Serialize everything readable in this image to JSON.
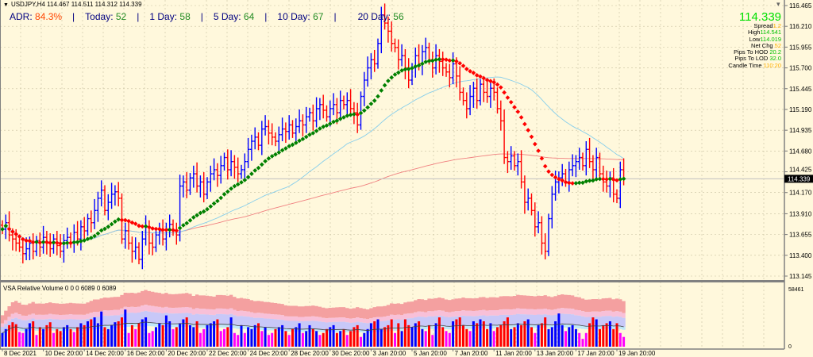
{
  "header": {
    "symbol": "USDJPY,H4",
    "ohlc_text": "114.467 114.511 114.312 114.339"
  },
  "adr": {
    "adr_label": "ADR:",
    "adr_value": "84.3%",
    "today_label": "Today:",
    "today_value": "52",
    "d1_label": "1 Day:",
    "d1_value": "58",
    "d5_label": "5 Day:",
    "d5_value": "64",
    "d10_label": "10 Day:",
    "d10_value": "67",
    "d20_label": "20 Day:",
    "d20_value": "56",
    "separator": "|"
  },
  "info": {
    "price": "114.339",
    "rows": [
      {
        "label": "Spread",
        "value": "1.2",
        "color": "orange"
      },
      {
        "label": "High",
        "value": "114.541",
        "color": "green"
      },
      {
        "label": "Low",
        "value": "114.019",
        "color": "green"
      },
      {
        "label": "Net Chg",
        "value": "52",
        "color": "orange"
      },
      {
        "label": "Pips To HOD",
        "value": "20.2",
        "color": "green"
      },
      {
        "label": "Pips To LOD",
        "value": "32.0",
        "color": "green"
      },
      {
        "label": "Candle Time",
        "value": "110:20",
        "color": "orange"
      }
    ]
  },
  "volume_pane": {
    "title": "VSA Relative Volume 0 0 0 6089 0 6089",
    "max_label": "58461",
    "min_label": "0"
  },
  "colors": {
    "up": "#0000ff",
    "down": "#ff0000",
    "low_volume": "#ff00ff",
    "fast_ma": "#87ceeb",
    "slow_ma": "#f08080",
    "trend_up": "#008000",
    "trend_down": "#ff0000",
    "background": "#fff8dc"
  },
  "chart_data": {
    "type": "bar",
    "style": "ohlc-bars",
    "current_price": 114.339,
    "y_ticks": [
      "116.465",
      "116.210",
      "115.955",
      "115.700",
      "115.445",
      "115.190",
      "114.935",
      "114.680",
      "114.425",
      "114.170",
      "113.910",
      "113.655",
      "113.400",
      "113.145"
    ],
    "ylim": [
      113.145,
      116.465
    ],
    "x_tick_labels": [
      "8 Dec 2021",
      "10 Dec 20:00",
      "14 Dec 20:00",
      "16 Dec 20:00",
      "20 Dec 20:00",
      "22 Dec 20:00",
      "24 Dec 20:00",
      "28 Dec 20:00",
      "30 Dec 20:00",
      "3 Jan 20:00",
      "5 Jan 20:00",
      "7 Jan 20:00",
      "11 Jan 20:00",
      "13 Jan 20:00",
      "17 Jan 20:00",
      "19 Jan 20:00"
    ],
    "grid": true,
    "close": [
      113.72,
      113.8,
      113.65,
      113.6,
      113.55,
      113.5,
      113.42,
      113.48,
      113.55,
      113.45,
      113.58,
      113.5,
      113.62,
      113.55,
      113.48,
      113.6,
      113.52,
      113.45,
      113.58,
      113.62,
      113.55,
      113.68,
      113.6,
      113.75,
      113.7,
      113.85,
      113.8,
      113.95,
      114.1,
      114.2,
      113.95,
      114.05,
      114.15,
      114.18,
      114.1,
      113.6,
      113.7,
      113.55,
      113.45,
      113.5,
      113.35,
      113.6,
      113.75,
      113.55,
      113.5,
      113.65,
      113.7,
      113.6,
      113.72,
      113.78,
      113.7,
      113.65,
      114.25,
      114.3,
      114.2,
      114.35,
      114.4,
      114.25,
      114.3,
      114.15,
      114.3,
      114.4,
      114.45,
      114.38,
      114.5,
      114.6,
      114.45,
      114.55,
      114.48,
      114.4,
      114.45,
      114.55,
      114.7,
      114.8,
      114.85,
      114.75,
      114.95,
      114.98,
      114.9,
      114.85,
      114.8,
      114.88,
      114.95,
      114.92,
      115.0,
      114.9,
      114.98,
      115.05,
      115.0,
      115.1,
      115.15,
      115.05,
      115.2,
      115.25,
      115.18,
      115.1,
      115.2,
      115.25,
      115.15,
      115.3,
      115.25,
      115.3,
      115.2,
      115.15,
      115.0,
      115.35,
      115.55,
      115.7,
      115.8,
      115.75,
      116.0,
      116.35,
      116.25,
      116.15,
      116.0,
      115.95,
      115.8,
      115.85,
      115.7,
      115.55,
      115.7,
      115.85,
      115.75,
      115.9,
      115.95,
      115.8,
      115.7,
      115.85,
      115.78,
      115.7,
      115.65,
      115.58,
      115.75,
      115.6,
      115.4,
      115.3,
      115.2,
      115.35,
      115.45,
      115.3,
      115.5,
      115.4,
      115.35,
      115.45,
      115.4,
      115.2,
      115.05,
      114.6,
      114.55,
      114.62,
      114.5,
      114.55,
      114.3,
      114.05,
      114.1,
      113.95,
      113.75,
      113.8,
      113.55,
      113.45,
      113.85,
      114.15,
      114.3,
      114.35,
      114.4,
      114.3,
      114.45,
      114.5,
      114.55,
      114.6,
      114.5,
      114.7,
      114.55,
      114.45,
      114.6,
      114.4,
      114.3,
      114.25,
      114.35,
      114.15,
      114.1,
      114.45,
      114.339
    ],
    "volume": [
      14000,
      18000,
      22000,
      25000,
      23000,
      15000,
      14000,
      18000,
      24000,
      26000,
      12000,
      20000,
      18000,
      22000,
      25000,
      14000,
      18000,
      16000,
      20000,
      22000,
      18000,
      15000,
      20000,
      24000,
      22000,
      26000,
      28000,
      30000,
      24000,
      36000,
      20000,
      18000,
      22000,
      25000,
      26000,
      30000,
      38000,
      14000,
      22000,
      18000,
      24000,
      28000,
      30000,
      14000,
      16000,
      20000,
      24000,
      22000,
      32000,
      26000,
      18000,
      20000,
      24000,
      28000,
      30000,
      22000,
      20000,
      26000,
      14000,
      18000,
      22000,
      24000,
      26000,
      28000,
      16000,
      18000,
      20000,
      30000,
      14000,
      12000,
      22000,
      14000,
      20000,
      18000,
      22000,
      24000,
      16000,
      20000,
      12000,
      14000,
      18000,
      20000,
      22000,
      16000,
      12000,
      18000,
      20000,
      24000,
      14000,
      16000,
      22000,
      18000,
      16000,
      12000,
      14000,
      18000,
      20000,
      22000,
      14000,
      16000,
      18000,
      12000,
      16000,
      20000,
      22000,
      10000,
      14000,
      18000,
      24000,
      26000,
      28000,
      18000,
      20000,
      22000,
      28000,
      14000,
      24000,
      16000,
      28000,
      22000,
      20000,
      24000,
      26000,
      18000,
      16000,
      22000,
      12000,
      24000,
      30000,
      20000,
      16000,
      14000,
      26000,
      28000,
      30000,
      22000,
      18000,
      16000,
      26000,
      24000,
      28000,
      26000,
      18000,
      24000,
      16000,
      20000,
      22000,
      26000,
      30000,
      18000,
      20000,
      24000,
      22000,
      26000,
      28000,
      20000,
      14000,
      22000,
      24000,
      30000,
      18000,
      20000,
      26000,
      34000,
      22000,
      16000,
      20000,
      22000,
      18000,
      14000,
      8000,
      14000,
      24000,
      30000,
      28000,
      18000,
      22000,
      24000,
      26000,
      18000,
      24000,
      14000,
      10000
    ],
    "volume_ylim": [
      0,
      58461
    ]
  }
}
